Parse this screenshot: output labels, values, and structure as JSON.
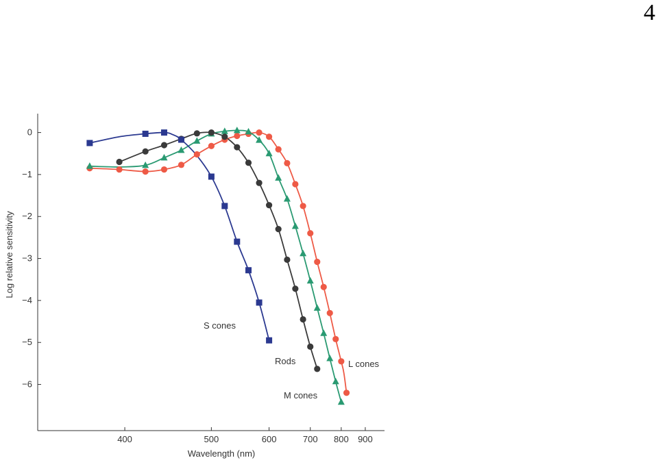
{
  "page_number": "4",
  "chart_data": {
    "type": "line",
    "title": "",
    "xlabel": "Wavelength (nm)",
    "ylabel": "Log relative sensitivity",
    "x_scale": "reciprocal",
    "x_ticks": [
      400,
      500,
      600,
      700,
      800,
      900
    ],
    "y_ticks": [
      0,
      -1,
      -2,
      -3,
      -4,
      -5,
      -6
    ],
    "y_tick_labels": [
      "0",
      "−1",
      "−2",
      "−3",
      "−4",
      "−5",
      "−6"
    ],
    "xlim": [
      333,
      1000
    ],
    "ylim": [
      -7.1,
      0.45
    ],
    "grid": false,
    "legend": "none; series labeled directly near curve ends",
    "series": [
      {
        "name": "S cones",
        "color": "#2b3990",
        "marker": "square",
        "x": [
          370,
          420,
          440,
          460,
          500,
          520,
          540,
          560,
          580,
          600
        ],
        "y": [
          -0.25,
          -0.03,
          0.0,
          -0.17,
          -1.05,
          -1.75,
          -2.6,
          -3.28,
          -4.05,
          -4.95
        ],
        "curve_x": [
          370,
          395,
          420,
          440,
          450,
          460,
          480,
          500,
          520,
          540,
          560,
          580,
          600
        ],
        "curve_y": [
          -0.25,
          -0.1,
          -0.03,
          0.0,
          -0.05,
          -0.17,
          -0.55,
          -1.05,
          -1.75,
          -2.6,
          -3.28,
          -4.05,
          -4.95
        ]
      },
      {
        "name": "Rods",
        "color": "#3a3a3a",
        "marker": "circle",
        "x": [
          395,
          420,
          440,
          460,
          480,
          500,
          520,
          540,
          560,
          580,
          600,
          620,
          640,
          660,
          680,
          700,
          720
        ],
        "y": [
          -0.7,
          -0.45,
          -0.3,
          -0.15,
          -0.02,
          0.0,
          -0.1,
          -0.35,
          -0.72,
          -1.2,
          -1.73,
          -2.3,
          -3.03,
          -3.72,
          -4.45,
          -5.1,
          -5.63
        ],
        "curve_x": [
          395,
          420,
          440,
          460,
          480,
          500,
          520,
          540,
          560,
          580,
          600,
          620,
          640,
          660,
          680,
          700,
          720
        ],
        "curve_y": [
          -0.7,
          -0.45,
          -0.3,
          -0.15,
          -0.02,
          0.0,
          -0.1,
          -0.35,
          -0.72,
          -1.2,
          -1.73,
          -2.3,
          -3.03,
          -3.72,
          -4.45,
          -5.1,
          -5.63
        ]
      },
      {
        "name": "M cones",
        "color": "#2a9a72",
        "marker": "triangle",
        "x": [
          370,
          420,
          440,
          460,
          480,
          500,
          520,
          540,
          560,
          580,
          600,
          620,
          640,
          660,
          680,
          700,
          720,
          740,
          760,
          780,
          800
        ],
        "y": [
          -0.8,
          -0.78,
          -0.6,
          -0.42,
          -0.2,
          -0.03,
          0.03,
          0.05,
          0.02,
          -0.18,
          -0.5,
          -1.08,
          -1.58,
          -2.23,
          -2.88,
          -3.53,
          -4.18,
          -4.78,
          -5.38,
          -5.93,
          -6.42
        ],
        "curve_x": [
          370,
          395,
          420,
          440,
          460,
          480,
          500,
          520,
          540,
          560,
          580,
          600,
          620,
          640,
          660,
          680,
          700,
          720,
          740,
          760,
          780,
          800
        ],
        "curve_y": [
          -0.8,
          -0.82,
          -0.78,
          -0.6,
          -0.42,
          -0.2,
          -0.03,
          0.03,
          0.05,
          0.02,
          -0.18,
          -0.5,
          -1.08,
          -1.58,
          -2.23,
          -2.88,
          -3.53,
          -4.18,
          -4.78,
          -5.38,
          -5.93,
          -6.42
        ]
      },
      {
        "name": "L cones",
        "color": "#ee5a46",
        "marker": "circle",
        "x": [
          370,
          395,
          420,
          440,
          460,
          480,
          500,
          520,
          540,
          560,
          580,
          600,
          620,
          640,
          660,
          680,
          700,
          720,
          740,
          760,
          780,
          800,
          820
        ],
        "y": [
          -0.85,
          -0.88,
          -0.93,
          -0.88,
          -0.77,
          -0.52,
          -0.32,
          -0.17,
          -0.08,
          -0.03,
          0.0,
          -0.1,
          -0.4,
          -0.73,
          -1.23,
          -1.75,
          -2.4,
          -3.08,
          -3.68,
          -4.3,
          -4.92,
          -5.45,
          -6.2
        ],
        "curve_x": [
          370,
          395,
          420,
          440,
          460,
          480,
          500,
          520,
          540,
          560,
          580,
          600,
          620,
          640,
          660,
          680,
          700,
          720,
          740,
          760,
          780,
          800,
          810,
          820
        ],
        "curve_y": [
          -0.85,
          -0.88,
          -0.93,
          -0.88,
          -0.77,
          -0.52,
          -0.32,
          -0.17,
          -0.08,
          -0.03,
          0.0,
          -0.1,
          -0.4,
          -0.73,
          -1.23,
          -1.75,
          -2.4,
          -3.08,
          -3.68,
          -4.3,
          -4.92,
          -5.45,
          -5.73,
          -6.2
        ]
      }
    ]
  }
}
